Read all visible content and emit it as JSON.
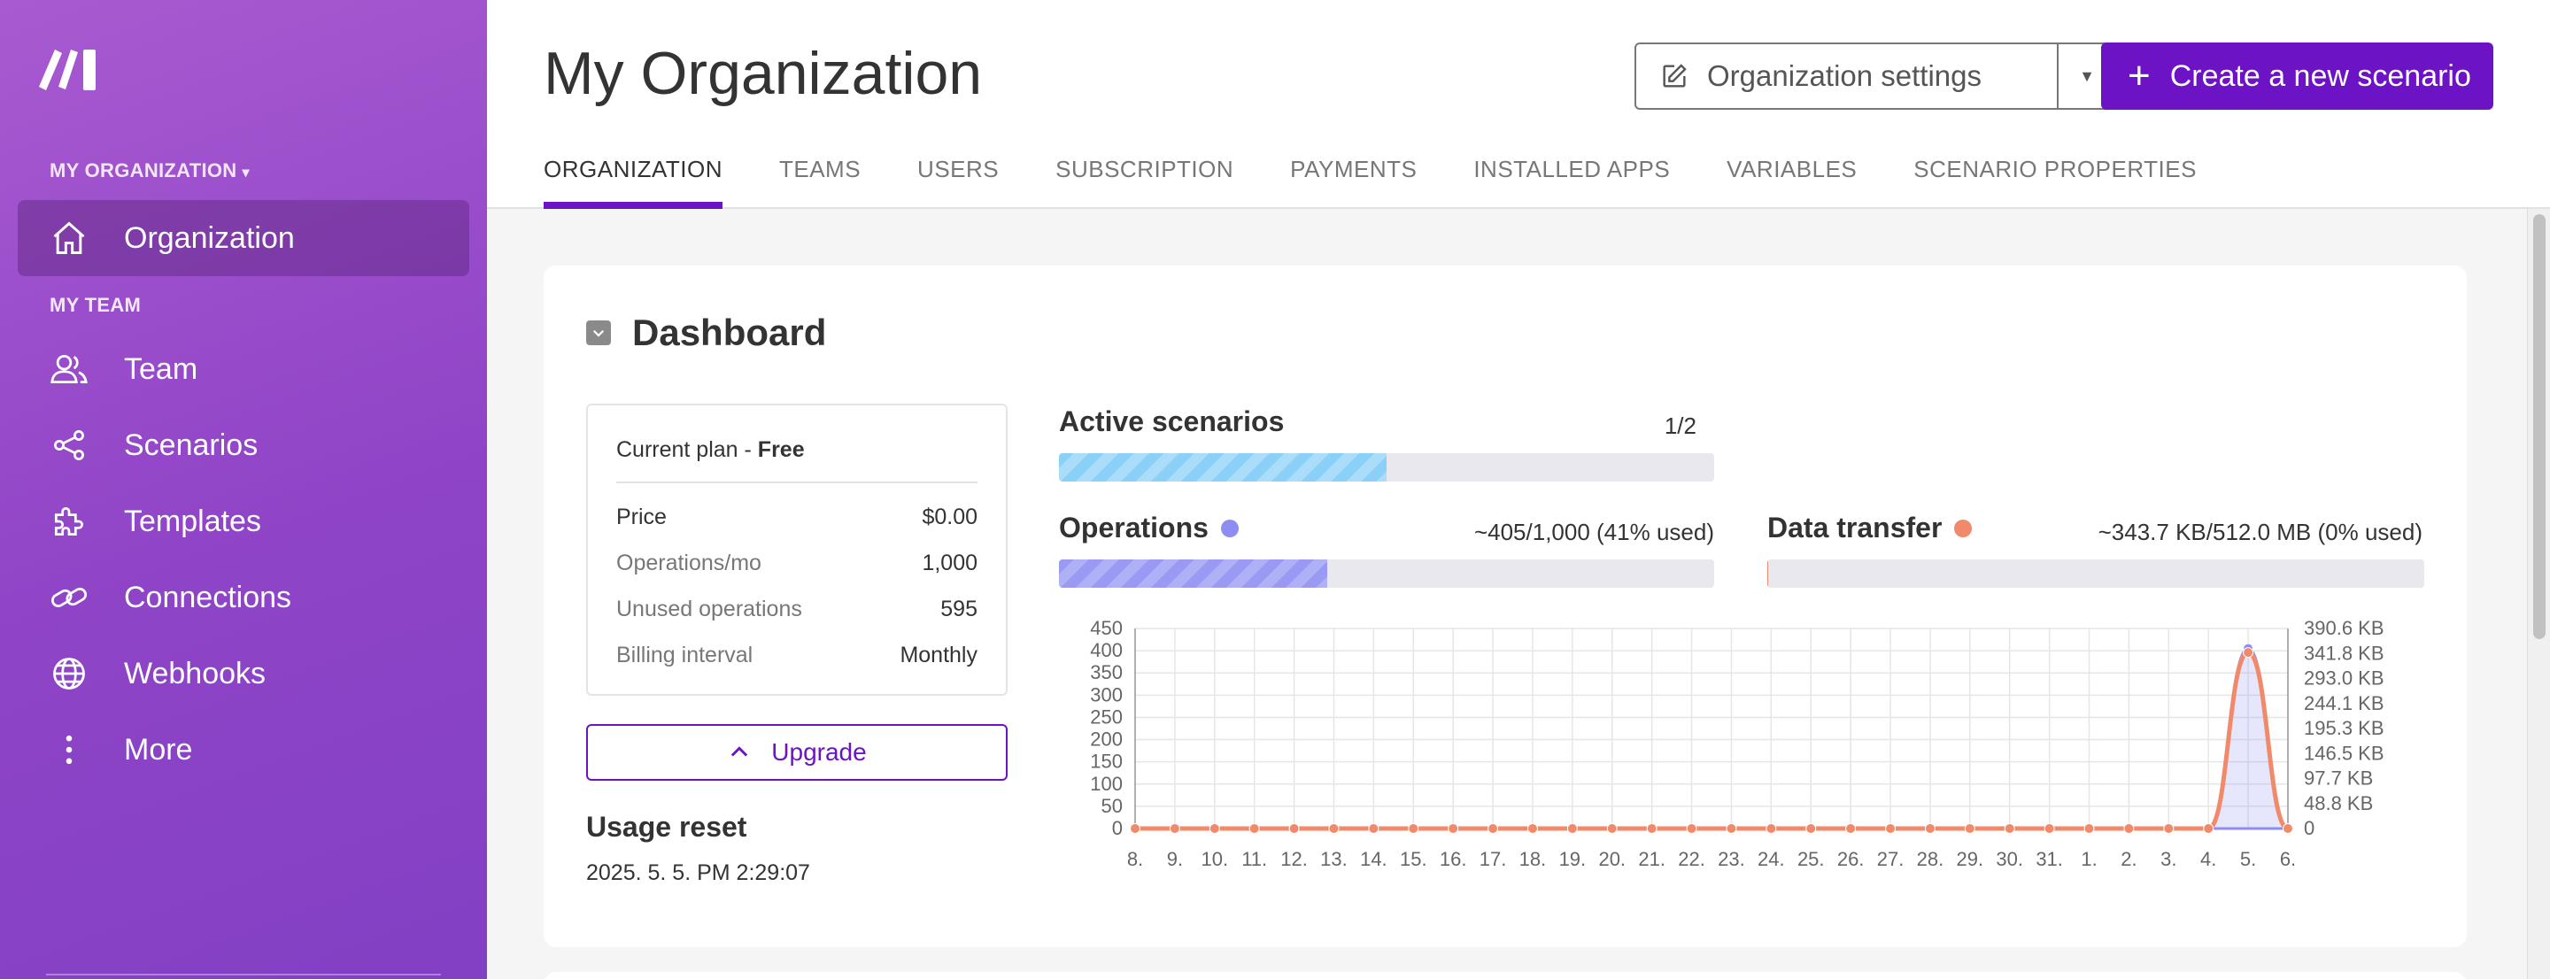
{
  "sidebar": {
    "org_heading": "MY ORGANIZATION",
    "team_heading": "MY TEAM",
    "items": [
      {
        "label": "Organization",
        "icon": "home-icon",
        "active": true
      },
      {
        "label": "Team",
        "icon": "users-icon"
      },
      {
        "label": "Scenarios",
        "icon": "share-icon"
      },
      {
        "label": "Templates",
        "icon": "puzzle-icon"
      },
      {
        "label": "Connections",
        "icon": "link-icon"
      },
      {
        "label": "Webhooks",
        "icon": "globe-icon"
      },
      {
        "label": "More",
        "icon": "more-vertical-icon"
      }
    ]
  },
  "header": {
    "title": "My Organization",
    "org_settings_label": "Organization settings",
    "create_label": "Create a new scenario",
    "tabs": [
      "ORGANIZATION",
      "TEAMS",
      "USERS",
      "SUBSCRIPTION",
      "PAYMENTS",
      "INSTALLED APPS",
      "VARIABLES",
      "SCENARIO PROPERTIES"
    ],
    "active_tab": "ORGANIZATION"
  },
  "dashboard": {
    "title": "Dashboard",
    "plan": {
      "title_prefix": "Current plan - ",
      "title_name": "Free",
      "rows": [
        {
          "label": "Price",
          "value": "$0.00"
        },
        {
          "label": "Operations/mo",
          "value": "1,000"
        },
        {
          "label": "Unused operations",
          "value": "595"
        },
        {
          "label": "Billing interval",
          "value": "Monthly"
        }
      ]
    },
    "upgrade_label": "Upgrade",
    "usage_reset_label": "Usage reset",
    "usage_reset_value": "2025. 5. 5. PM 2:29:07",
    "active_scenarios": {
      "label": "Active scenarios",
      "value": "1/2",
      "fraction": 0.5
    },
    "operations": {
      "label": "Operations",
      "value": "~405/1,000 (41% used)",
      "fraction": 0.41
    },
    "data_transfer": {
      "label": "Data transfer",
      "value": "~343.7 KB/512.0 MB (0% used)",
      "fraction": 0.0007
    }
  },
  "colors": {
    "brand": "#6d13c6",
    "operations": "#8e8ef2",
    "data_transfer": "#f08a6a",
    "active_scenarios": "#8bd1f7"
  },
  "chart_data": {
    "type": "line",
    "categories": [
      "8.",
      "9.",
      "10.",
      "11.",
      "12.",
      "13.",
      "14.",
      "15.",
      "16.",
      "17.",
      "18.",
      "19.",
      "20.",
      "21.",
      "22.",
      "23.",
      "24.",
      "25.",
      "26.",
      "27.",
      "28.",
      "29.",
      "30.",
      "31.",
      "1.",
      "2.",
      "3.",
      "4.",
      "5.",
      "6."
    ],
    "y_ticks": [
      "0",
      "50",
      "100",
      "150",
      "200",
      "250",
      "300",
      "350",
      "400",
      "450"
    ],
    "y2_ticks": [
      "0",
      "48.8 KB",
      "97.7 KB",
      "146.5 KB",
      "195.3 KB",
      "244.1 KB",
      "293.0 KB",
      "341.8 KB",
      "390.6 KB"
    ],
    "ylim": [
      0,
      450
    ],
    "y2lim_kb": [
      0,
      390.6
    ],
    "grid": true,
    "series": [
      {
        "name": "Operations",
        "axis": "left",
        "color": "#8e8ef2",
        "area": true,
        "values": [
          0,
          0,
          0,
          0,
          0,
          0,
          0,
          0,
          0,
          0,
          0,
          0,
          0,
          0,
          0,
          0,
          0,
          0,
          0,
          0,
          0,
          0,
          0,
          0,
          0,
          0,
          0,
          0,
          405,
          0
        ]
      },
      {
        "name": "Data transfer",
        "axis": "right",
        "color": "#f08a6a",
        "values": [
          0,
          0,
          0,
          0,
          0,
          0,
          0,
          0,
          0,
          0,
          0,
          0,
          0,
          0,
          0,
          0,
          0,
          0,
          0,
          0,
          0,
          0,
          0,
          0,
          0,
          0,
          0,
          0,
          343.7,
          0
        ]
      }
    ]
  }
}
